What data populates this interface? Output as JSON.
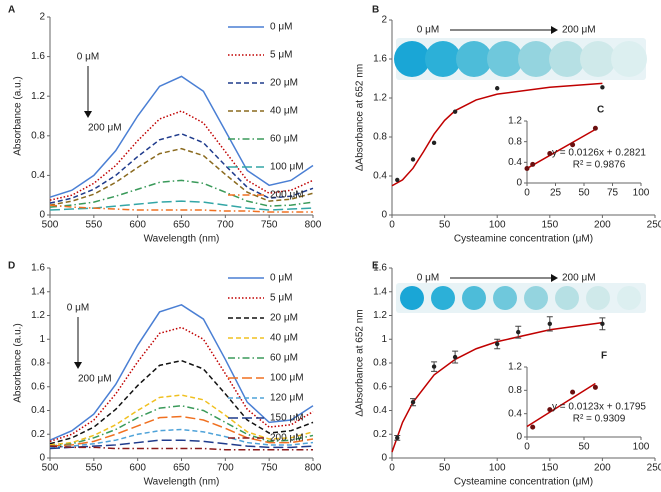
{
  "chart_data": [
    {
      "type": "line",
      "label": "A",
      "x_label": "Wavelength (nm)",
      "y_label": "Absorbance (a.u.)",
      "arrow_start_label": "0 μM",
      "arrow_end_label": "200 μM",
      "x": [
        500,
        525,
        550,
        575,
        600,
        625,
        650,
        675,
        700,
        725,
        750,
        775,
        800
      ],
      "xlim": [
        500,
        800
      ],
      "xticks": [
        500,
        550,
        600,
        650,
        700,
        750,
        800
      ],
      "ylim": [
        0,
        2
      ],
      "yticks": [
        0,
        0.4,
        0.8,
        1.2,
        1.6,
        2
      ],
      "series": [
        {
          "name": "0 μM",
          "color": "#4a7fd4",
          "dash": "solid",
          "values": [
            0.18,
            0.25,
            0.4,
            0.65,
            1.0,
            1.3,
            1.4,
            1.25,
            0.85,
            0.45,
            0.3,
            0.35,
            0.5
          ]
        },
        {
          "name": "5 μM",
          "color": "#c00000",
          "dash": "dotted",
          "values": [
            0.15,
            0.2,
            0.32,
            0.5,
            0.75,
            0.97,
            1.05,
            0.93,
            0.64,
            0.35,
            0.22,
            0.25,
            0.35
          ]
        },
        {
          "name": "20 μM",
          "color": "#1f3b8c",
          "dash": "dashed",
          "values": [
            0.12,
            0.17,
            0.26,
            0.4,
            0.59,
            0.76,
            0.82,
            0.73,
            0.5,
            0.28,
            0.17,
            0.19,
            0.27
          ]
        },
        {
          "name": "40 μM",
          "color": "#8a6a1e",
          "dash": "dashed",
          "values": [
            0.1,
            0.14,
            0.21,
            0.33,
            0.48,
            0.62,
            0.67,
            0.6,
            0.41,
            0.23,
            0.14,
            0.16,
            0.22
          ]
        },
        {
          "name": "60 μM",
          "color": "#3a9a5a",
          "dash": "dashdot",
          "values": [
            0.08,
            0.1,
            0.13,
            0.19,
            0.26,
            0.33,
            0.35,
            0.32,
            0.23,
            0.14,
            0.09,
            0.1,
            0.13
          ]
        },
        {
          "name": "100 μM",
          "color": "#33a6a6",
          "dash": "longdash",
          "values": [
            0.05,
            0.06,
            0.07,
            0.09,
            0.11,
            0.13,
            0.14,
            0.13,
            0.1,
            0.07,
            0.05,
            0.06,
            0.07
          ]
        },
        {
          "name": "200 μM",
          "color": "#f07020",
          "dash": "dashdot",
          "values": [
            0.1,
            0.08,
            0.07,
            0.06,
            0.05,
            0.05,
            0.05,
            0.05,
            0.04,
            0.04,
            0.03,
            0.03,
            0.03
          ]
        }
      ]
    },
    {
      "type": "scatter",
      "label": "B",
      "x_label": "Cysteamine concentration (μM)",
      "y_label": "ΔAbsorbance at 652 nm",
      "arrow_start_label": "0 μM",
      "arrow_end_label": "200 μM",
      "x": [
        5,
        20,
        40,
        60,
        100,
        200
      ],
      "values": [
        0.36,
        0.57,
        0.74,
        1.06,
        1.3,
        1.31
      ],
      "color": "#222222",
      "fit": {
        "color": "#c00000",
        "x": [
          0,
          10,
          20,
          30,
          40,
          50,
          60,
          80,
          100,
          150,
          200
        ],
        "y": [
          0.3,
          0.36,
          0.48,
          0.65,
          0.83,
          0.97,
          1.07,
          1.18,
          1.24,
          1.31,
          1.35
        ]
      },
      "xlim": [
        0,
        250
      ],
      "xticks": [
        0,
        50,
        100,
        150,
        200,
        250
      ],
      "ylim": [
        0,
        2
      ],
      "yticks": [
        0,
        0.4,
        0.8,
        1.2,
        1.6,
        2
      ]
    },
    {
      "type": "scatter",
      "label": "C",
      "equation": "y = 0.0126x + 0.2821",
      "r_squared": "R² = 0.9876",
      "x": [
        0,
        5,
        20,
        40,
        60
      ],
      "values": [
        0.28,
        0.36,
        0.57,
        0.74,
        1.06
      ],
      "color": "#6b1010",
      "fit": {
        "color": "#c00000",
        "x": [
          0,
          60
        ],
        "y": [
          0.2821,
          1.0381
        ]
      },
      "xlim": [
        0,
        100
      ],
      "xticks": [
        0,
        25,
        50,
        75,
        100
      ],
      "ylim": [
        0,
        1.2
      ],
      "yticks": [
        0,
        0.4,
        0.8,
        1.2
      ]
    },
    {
      "type": "line",
      "label": "D",
      "x_label": "Wavelength (nm)",
      "y_label": "Absorbance (a.u.)",
      "arrow_start_label": "0 μM",
      "arrow_end_label": "200 μM",
      "x": [
        500,
        525,
        550,
        575,
        600,
        625,
        650,
        675,
        700,
        725,
        750,
        775,
        800
      ],
      "xlim": [
        500,
        800
      ],
      "xticks": [
        500,
        550,
        600,
        650,
        700,
        750,
        800
      ],
      "ylim": [
        0,
        1.6
      ],
      "yticks": [
        0,
        0.2,
        0.4,
        0.6,
        0.8,
        1,
        1.2,
        1.4,
        1.6
      ],
      "series": [
        {
          "name": "0 μM",
          "color": "#4a7fd4",
          "dash": "solid",
          "values": [
            0.15,
            0.23,
            0.37,
            0.62,
            0.95,
            1.23,
            1.29,
            1.17,
            0.83,
            0.47,
            0.3,
            0.32,
            0.44
          ]
        },
        {
          "name": "5 μM",
          "color": "#c00000",
          "dash": "dotted",
          "values": [
            0.14,
            0.2,
            0.32,
            0.54,
            0.81,
            1.05,
            1.1,
            1.0,
            0.71,
            0.41,
            0.26,
            0.28,
            0.39
          ]
        },
        {
          "name": "20 μM",
          "color": "#111111",
          "dash": "dashed",
          "values": [
            0.12,
            0.17,
            0.26,
            0.41,
            0.61,
            0.78,
            0.82,
            0.75,
            0.54,
            0.32,
            0.21,
            0.23,
            0.3
          ]
        },
        {
          "name": "40 μM",
          "color": "#f0c020",
          "dash": "dashed",
          "values": [
            0.11,
            0.13,
            0.19,
            0.28,
            0.4,
            0.51,
            0.53,
            0.49,
            0.36,
            0.22,
            0.16,
            0.17,
            0.22
          ]
        },
        {
          "name": "60 μM",
          "color": "#3a9a5a",
          "dash": "dashdot",
          "values": [
            0.1,
            0.12,
            0.17,
            0.24,
            0.34,
            0.42,
            0.44,
            0.4,
            0.3,
            0.2,
            0.14,
            0.15,
            0.19
          ]
        },
        {
          "name": "100 μM",
          "color": "#f07020",
          "dash": "longdash",
          "values": [
            0.1,
            0.11,
            0.14,
            0.2,
            0.27,
            0.34,
            0.35,
            0.32,
            0.25,
            0.17,
            0.13,
            0.13,
            0.16
          ]
        },
        {
          "name": "120 μM",
          "color": "#4fa3d9",
          "dash": "dashed",
          "values": [
            0.09,
            0.1,
            0.12,
            0.15,
            0.2,
            0.23,
            0.24,
            0.22,
            0.18,
            0.13,
            0.11,
            0.11,
            0.13
          ]
        },
        {
          "name": "150 μM",
          "color": "#1f3b8c",
          "dash": "longdash",
          "values": [
            0.08,
            0.09,
            0.1,
            0.11,
            0.13,
            0.15,
            0.15,
            0.14,
            0.12,
            0.1,
            0.09,
            0.09,
            0.1
          ]
        },
        {
          "name": "200 μM",
          "color": "#8b1a1a",
          "dash": "dashdot",
          "values": [
            0.1,
            0.09,
            0.09,
            0.08,
            0.08,
            0.08,
            0.08,
            0.08,
            0.07,
            0.07,
            0.07,
            0.07,
            0.07
          ]
        }
      ]
    },
    {
      "type": "scatter",
      "label": "E",
      "x_label": "Cysteamine concentration (μM)",
      "y_label": "ΔAbsorbance at 652 nm",
      "arrow_start_label": "0 μM",
      "arrow_end_label": "200 μM",
      "x": [
        5,
        20,
        40,
        60,
        100,
        120,
        150,
        200
      ],
      "values": [
        0.17,
        0.47,
        0.77,
        0.85,
        0.96,
        1.06,
        1.13,
        1.13
      ],
      "errors": [
        0.02,
        0.03,
        0.04,
        0.05,
        0.04,
        0.05,
        0.06,
        0.05
      ],
      "color": "#222222",
      "fit": {
        "color": "#c00000",
        "x": [
          0,
          10,
          20,
          40,
          60,
          80,
          100,
          150,
          200
        ],
        "y": [
          0.05,
          0.3,
          0.47,
          0.7,
          0.83,
          0.92,
          0.98,
          1.08,
          1.14
        ]
      },
      "xlim": [
        0,
        250
      ],
      "xticks": [
        0,
        50,
        100,
        150,
        200,
        250
      ],
      "ylim": [
        0,
        1.6
      ],
      "yticks": [
        0,
        0.2,
        0.4,
        0.6,
        0.8,
        1,
        1.2,
        1.4,
        1.6
      ]
    },
    {
      "type": "scatter",
      "label": "F",
      "equation": "y = 0.0123x + 0.1795",
      "r_squared": "R² = 0.9309",
      "x": [
        5,
        20,
        40,
        60
      ],
      "values": [
        0.17,
        0.47,
        0.77,
        0.85
      ],
      "color": "#6b1010",
      "fit": {
        "color": "#c00000",
        "x": [
          0,
          60
        ],
        "y": [
          0.1795,
          0.9175
        ]
      },
      "xlim": [
        0,
        100
      ],
      "xticks": [
        0,
        50,
        100
      ],
      "ylim": [
        0,
        1.2
      ],
      "yticks": [
        0,
        0.4,
        0.8,
        1.2
      ]
    }
  ]
}
